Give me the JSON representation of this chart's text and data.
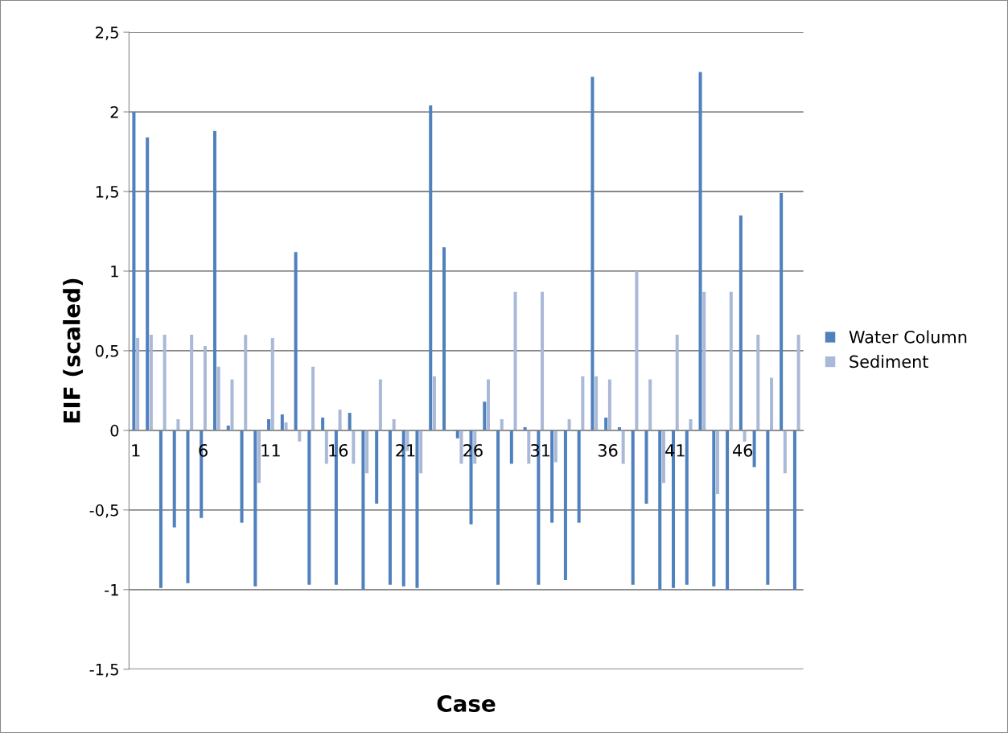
{
  "chart_data": {
    "type": "bar",
    "xlabel": "Case",
    "ylabel": "EIF (scaled)",
    "categories": [
      "1",
      null,
      null,
      null,
      null,
      "6",
      null,
      null,
      null,
      null,
      "11",
      null,
      null,
      null,
      null,
      "16",
      null,
      null,
      null,
      null,
      "21",
      null,
      null,
      null,
      null,
      "26",
      null,
      null,
      null,
      null,
      "31",
      null,
      null,
      null,
      null,
      "36",
      null,
      null,
      null,
      null,
      "41",
      null,
      null,
      null,
      null,
      "46",
      null,
      null,
      null,
      null
    ],
    "series": [
      {
        "name": "Water Column",
        "color": "#4f81bd",
        "values": [
          2.0,
          1.84,
          -0.99,
          -0.61,
          -0.96,
          -0.55,
          1.88,
          0.03,
          -0.58,
          -0.98,
          0.07,
          0.1,
          1.12,
          -0.97,
          0.08,
          -0.97,
          0.11,
          -1.0,
          -0.46,
          -0.97,
          -0.98,
          -0.99,
          2.04,
          1.15,
          -0.05,
          -0.59,
          0.18,
          -0.97,
          -0.21,
          0.02,
          -0.97,
          -0.58,
          -0.94,
          -0.58,
          2.22,
          0.08,
          0.02,
          -0.97,
          -0.46,
          -1.0,
          -0.99,
          -0.97,
          2.25,
          -0.98,
          -1.0,
          1.35,
          -0.23,
          -0.97,
          1.49,
          -1.0
        ]
      },
      {
        "name": "Sediment",
        "color": "#aab9d8",
        "values": [
          0.58,
          0.6,
          0.6,
          0.07,
          0.6,
          0.53,
          0.4,
          0.32,
          0.6,
          -0.33,
          0.58,
          0.05,
          -0.07,
          0.4,
          -0.21,
          0.13,
          -0.21,
          -0.27,
          0.32,
          0.07,
          -0.13,
          -0.27,
          0.34,
          null,
          -0.21,
          -0.21,
          0.32,
          0.07,
          0.87,
          -0.21,
          0.87,
          -0.2,
          0.07,
          0.34,
          0.34,
          0.32,
          -0.21,
          1.0,
          0.32,
          -0.33,
          0.6,
          0.07,
          0.87,
          -0.4,
          0.87,
          -0.07,
          0.6,
          0.33,
          -0.27,
          0.6
        ]
      }
    ],
    "ylim": [
      -1.5,
      2.5
    ],
    "yticks": [
      {
        "value": -1.5,
        "label": "-1,5"
      },
      {
        "value": -1,
        "label": "-1"
      },
      {
        "value": -0.5,
        "label": "-0,5"
      },
      {
        "value": 0,
        "label": "0"
      },
      {
        "value": 0.5,
        "label": "0,5"
      },
      {
        "value": 1,
        "label": "1"
      },
      {
        "value": 1.5,
        "label": "1,5"
      },
      {
        "value": 2,
        "label": "2"
      },
      {
        "value": 2.5,
        "label": "2,5"
      }
    ],
    "grid": "y",
    "legend": "right"
  }
}
